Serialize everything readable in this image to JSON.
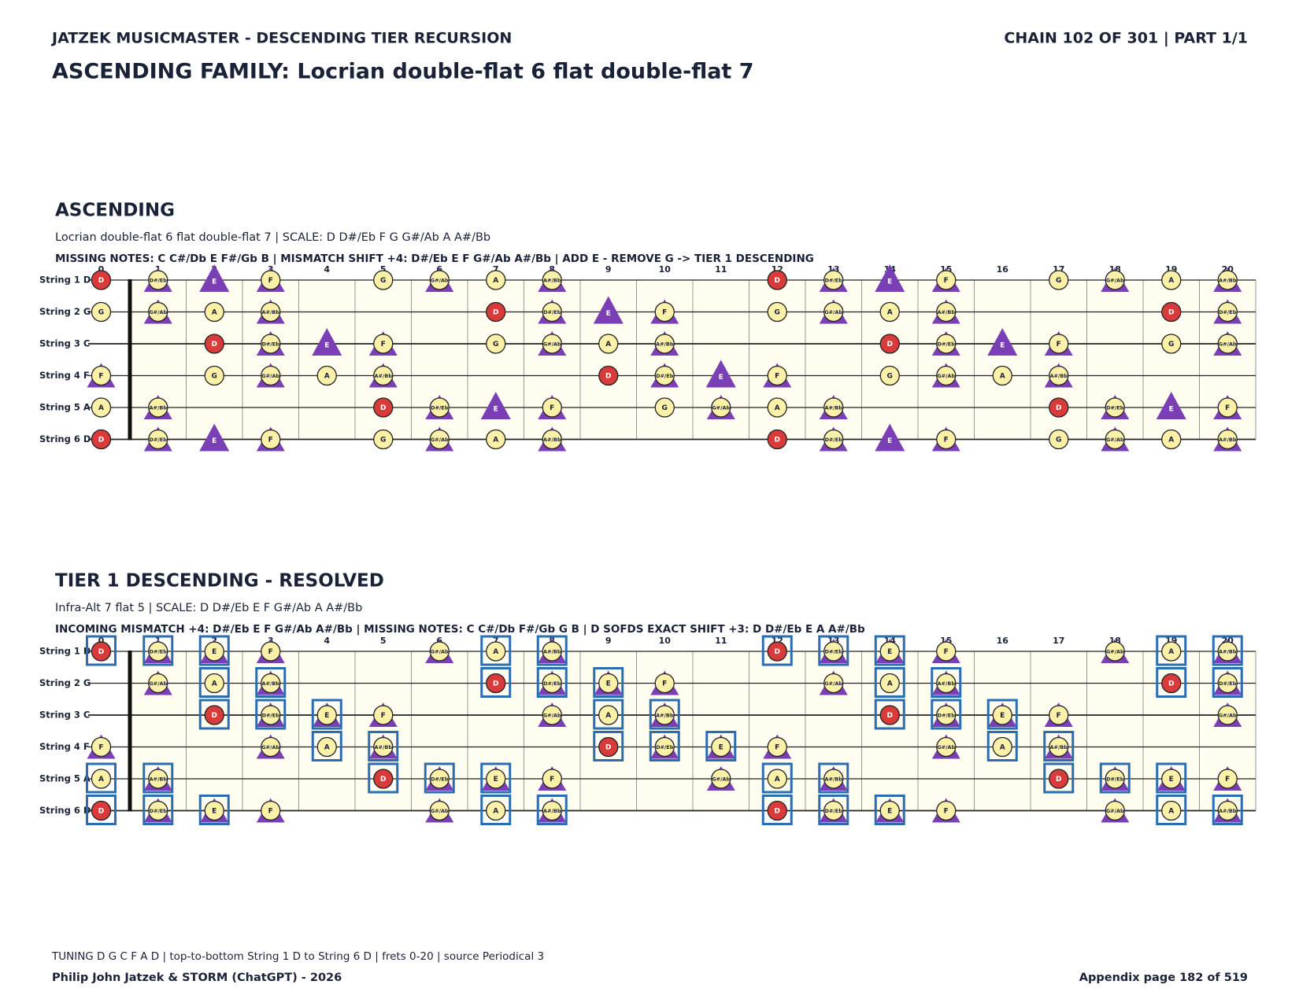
{
  "header": {
    "left": "JATZEK MUSICMASTER - DESCENDING TIER RECURSION",
    "right": "CHAIN 102 OF 301  |  PART 1/1",
    "title": "ASCENDING FAMILY: Locrian double-flat 6 flat double-flat 7"
  },
  "notes": [
    "C",
    "C#/Db",
    "D",
    "D#/Eb",
    "E",
    "F",
    "F#/Gb",
    "G",
    "G#/Ab",
    "A",
    "A#/Bb",
    "B"
  ],
  "tuning": [
    "D",
    "G",
    "C",
    "F",
    "A",
    "D"
  ],
  "strings": [
    "String 1 D",
    "String 2 G",
    "String 3 C",
    "String 4 F",
    "String 5 A",
    "String 6 D"
  ],
  "frets": [
    0,
    1,
    2,
    3,
    4,
    5,
    6,
    7,
    8,
    9,
    10,
    11,
    12,
    13,
    14,
    15,
    16,
    17,
    18,
    19,
    20
  ],
  "boards": [
    {
      "heading": "ASCENDING",
      "subtitle": "Locrian double-flat 6 flat double-flat 7  |  SCALE: D D#/Eb F G G#/Ab A A#/Bb",
      "info": "MISSING NOTES: C C#/Db E F#/Gb B  |  MISMATCH SHIFT +4: D#/Eb E F G#/Ab A#/Bb  |  ADD E - REMOVE G -> TIER 1 DESCENDING",
      "scale": [
        "D",
        "D#/Eb",
        "F",
        "G",
        "G#/Ab",
        "A",
        "A#/Bb"
      ],
      "shift": [
        "D#/Eb",
        "E",
        "F",
        "G#/Ab",
        "A#/Bb"
      ],
      "exact": []
    },
    {
      "heading": "TIER 1 DESCENDING - RESOLVED",
      "subtitle": "Infra-Alt 7 flat 5  |  SCALE: D D#/Eb E F G#/Ab A A#/Bb",
      "info": "INCOMING MISMATCH +4: D#/Eb E F G#/Ab A#/Bb  |  MISSING NOTES: C C#/Db F#/Gb G B  |  D SOFDS EXACT SHIFT +3: D D#/Eb E A A#/Bb",
      "scale": [
        "D",
        "D#/Eb",
        "E",
        "F",
        "G#/Ab",
        "A",
        "A#/Bb"
      ],
      "shift": [
        "D#/Eb",
        "E",
        "F",
        "G#/Ab",
        "A#/Bb"
      ],
      "exact": [
        "D",
        "D#/Eb",
        "E",
        "A",
        "A#/Bb"
      ]
    }
  ],
  "footer": {
    "tuning": "TUNING D G C F A D | top-to-bottom String 1 D to String 6 D | frets 0-20 | source Periodical 3",
    "credit": "Philip John Jatzek & STORM (ChatGPT) - 2026",
    "page": "Appendix page 182 of 519"
  }
}
